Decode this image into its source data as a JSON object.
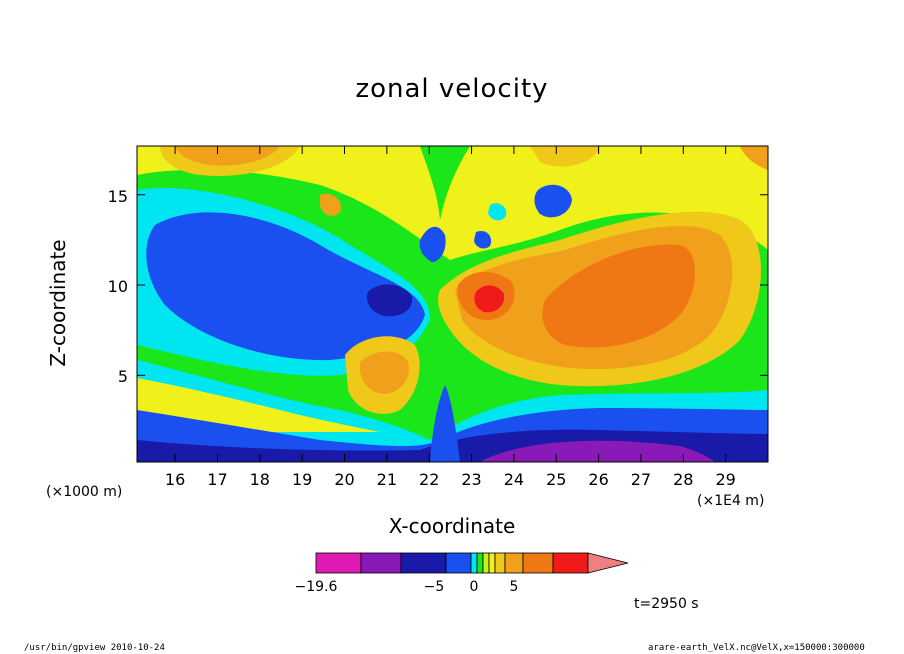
{
  "chart_data": {
    "type": "heatmap",
    "title": "zonal velocity",
    "xlabel": "X-coordinate",
    "ylabel": "Z-coordinate",
    "x_unit": "(×1E4 m)",
    "y_unit": "(×1000 m)",
    "xlim": [
      15.1,
      30.0
    ],
    "ylim": [
      0.2,
      17.7
    ],
    "x_ticks": [
      "16",
      "17",
      "18",
      "19",
      "20",
      "21",
      "22",
      "23",
      "24",
      "25",
      "26",
      "27",
      "28",
      "29"
    ],
    "y_ticks": [
      "5",
      "10",
      "15"
    ],
    "colorbar": {
      "tick_labels": [
        "−19.6",
        "−5",
        "0",
        "5"
      ],
      "levels": [
        -19.6,
        -15,
        -10,
        -5,
        -3,
        -1.5,
        -0.5,
        0.5,
        1.5,
        3,
        5,
        8,
        11,
        14
      ],
      "colors": [
        "#e01ab4",
        "#8a1ab8",
        "#1a1aa8",
        "#1a50f0",
        "#00e6f0",
        "#1ae61a",
        "#c8f01a",
        "#f0f01a",
        "#f0c81a",
        "#f0a01a",
        "#f07814",
        "#f01a1a",
        "#f08080"
      ]
    },
    "time_label": "t=2950 s"
  },
  "footer": {
    "left": "/usr/bin/gpview  2010-10-24",
    "right": "arare-earth_VelX.nc@VelX,x=150000:300000"
  }
}
